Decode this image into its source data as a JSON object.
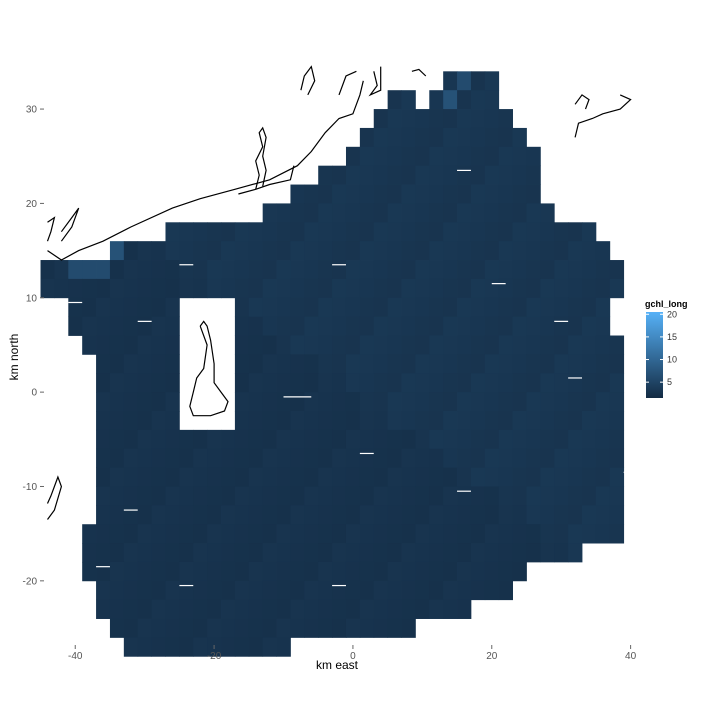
{
  "chart_data": {
    "type": "heatmap",
    "title": "",
    "xlabel": "km east",
    "ylabel": "km north",
    "xlim": [
      -44.5,
      40.2
    ],
    "ylim": [
      -26.8,
      35.2
    ],
    "xticks": [
      -40,
      -20,
      0,
      20,
      40
    ],
    "yticks": [
      -20,
      -10,
      0,
      10,
      20,
      30
    ],
    "xtick_labels": [
      "-40",
      "-20",
      "0",
      "20",
      "40"
    ],
    "ytick_labels": [
      "-20",
      "-10",
      "0",
      "10",
      "20",
      "30"
    ],
    "grid": false,
    "legend": {
      "title": "gchl_long",
      "position": "right",
      "breaks": [
        5,
        10,
        15,
        20
      ],
      "break_labels": [
        "5",
        "10",
        "15",
        "20"
      ],
      "range": [
        1.5,
        20.5
      ],
      "colors": {
        "low": "#132b43",
        "high": "#56b1f7"
      }
    },
    "cells": {
      "cell_width_km": 2,
      "cell_height_km": 2,
      "background_value": 2.8,
      "rows": [
        {
          "y": 33,
          "x_from": 14,
          "x_to": 20
        },
        {
          "y": 31,
          "x_from": 6,
          "x_to": 8
        },
        {
          "y": 31,
          "x_from": 12,
          "x_to": 20
        },
        {
          "y": 29,
          "x_from": 4,
          "x_to": 22
        },
        {
          "y": 27,
          "x_from": 2,
          "x_to": 24
        },
        {
          "y": 25,
          "x_from": 0,
          "x_to": 26
        },
        {
          "y": 23,
          "x_from": -4,
          "x_to": 26
        },
        {
          "y": 21,
          "x_from": -8,
          "x_to": 26
        },
        {
          "y": 19,
          "x_from": -12,
          "x_to": 28
        },
        {
          "y": 17,
          "x_from": -26,
          "x_to": 34
        },
        {
          "y": 15,
          "x_from": -34,
          "x_to": 36
        },
        {
          "y": 13,
          "x_from": -44,
          "x_to": 38
        },
        {
          "y": 11,
          "x_from": -44,
          "x_to": 38
        },
        {
          "y": 9,
          "x_from": -40,
          "x_to": 36
        },
        {
          "y": 7,
          "x_from": -40,
          "x_to": 36
        },
        {
          "y": 5,
          "x_from": -38,
          "x_to": 38
        },
        {
          "y": 3,
          "x_from": -36,
          "x_to": 38
        },
        {
          "y": 1,
          "x_from": -36,
          "x_to": 38
        },
        {
          "y": -1,
          "x_from": -36,
          "x_to": 38
        },
        {
          "y": -3,
          "x_from": -36,
          "x_to": 38
        },
        {
          "y": -5,
          "x_from": -36,
          "x_to": 38
        },
        {
          "y": -7,
          "x_from": -36,
          "x_to": 38
        },
        {
          "y": -9,
          "x_from": -36,
          "x_to": 38
        },
        {
          "y": -11,
          "x_from": -36,
          "x_to": 38
        },
        {
          "y": -13,
          "x_from": -36,
          "x_to": 38
        },
        {
          "y": -15,
          "x_from": -38,
          "x_to": 38
        },
        {
          "y": -17,
          "x_from": -38,
          "x_to": 32
        },
        {
          "y": -19,
          "x_from": -38,
          "x_to": 24
        },
        {
          "y": -21,
          "x_from": -36,
          "x_to": 22
        },
        {
          "y": -23,
          "x_from": -36,
          "x_to": 16
        },
        {
          "y": -25,
          "x_from": -34,
          "x_to": 8
        },
        {
          "y": -27,
          "x_from": -32,
          "x_to": -10
        }
      ],
      "gaps": [
        {
          "x_from": -24,
          "x_to": -18,
          "y_from": -3,
          "y_to": 9
        }
      ],
      "highlights": [
        {
          "x": -44,
          "y": 15,
          "value": 14
        },
        {
          "x": -38,
          "y": 15,
          "value": 8
        },
        {
          "x": -36,
          "y": 15,
          "value": 8
        },
        {
          "x": -34,
          "y": 15,
          "value": 7
        },
        {
          "x": -40,
          "y": 13,
          "value": 6
        },
        {
          "x": -38,
          "y": 13,
          "value": 6
        },
        {
          "x": -36,
          "y": 13,
          "value": 6
        },
        {
          "x": -30,
          "y": 17,
          "value": 6
        },
        {
          "x": -28,
          "y": 17,
          "value": 6
        },
        {
          "x": -26,
          "y": 19,
          "value": 11
        },
        {
          "x": -24,
          "y": 19,
          "value": 11
        },
        {
          "x": -22,
          "y": 19,
          "value": 10
        },
        {
          "x": -20,
          "y": 19,
          "value": 9
        },
        {
          "x": -18,
          "y": 19,
          "value": 8
        },
        {
          "x": -16,
          "y": 19,
          "value": 7
        },
        {
          "x": -14,
          "y": 19,
          "value": 6
        },
        {
          "x": -20,
          "y": 21,
          "value": 14
        },
        {
          "x": -18,
          "y": 21,
          "value": 15
        },
        {
          "x": -16,
          "y": 21,
          "value": 14
        },
        {
          "x": -22,
          "y": 21,
          "value": 12
        },
        {
          "x": -8,
          "y": 23,
          "value": 7
        },
        {
          "x": -6,
          "y": 23,
          "value": 6
        },
        {
          "x": 14,
          "y": 31,
          "value": 7
        },
        {
          "x": 16,
          "y": 33,
          "value": 6
        },
        {
          "x": -22,
          "y": 3,
          "value": 13
        },
        {
          "x": -24,
          "y": 3,
          "value": 9
        },
        {
          "x": -24,
          "y": 1,
          "value": 6
        }
      ]
    },
    "white_segments": [
      {
        "x": [
          -25,
          -23
        ],
        "y": 13.5
      },
      {
        "x": [
          -3,
          -1
        ],
        "y": 13.5
      },
      {
        "x": [
          20,
          22
        ],
        "y": 11.5
      },
      {
        "x": [
          15,
          17
        ],
        "y": 23.5
      },
      {
        "x": [
          -41,
          -39
        ],
        "y": 9.5
      },
      {
        "x": [
          -31,
          -29
        ],
        "y": 7.5
      },
      {
        "x": [
          29,
          31
        ],
        "y": 7.5
      },
      {
        "x": [
          31,
          33
        ],
        "y": 1.5
      },
      {
        "x": [
          -10,
          -6
        ],
        "y": -0.5
      },
      {
        "x": [
          1,
          3
        ],
        "y": -6.5
      },
      {
        "x": [
          15,
          17
        ],
        "y": -10.5
      },
      {
        "x": [
          39,
          41
        ],
        "y": -8.5
      },
      {
        "x": [
          -33,
          -31
        ],
        "y": -12.5
      },
      {
        "x": [
          -37,
          -35
        ],
        "y": -18.5
      },
      {
        "x": [
          -25,
          -23
        ],
        "y": -20.5
      },
      {
        "x": [
          -3,
          -1
        ],
        "y": -20.5
      }
    ],
    "coastlines": [
      [
        [
          -44.0,
          15.0
        ],
        [
          -42.0,
          14.0
        ],
        [
          -39.5,
          15.0
        ],
        [
          -36.0,
          16.0
        ],
        [
          -32.0,
          17.5
        ],
        [
          -26.0,
          19.5
        ],
        [
          -22.0,
          20.5
        ],
        [
          -17.0,
          21.5
        ],
        [
          -12.0,
          22.5
        ],
        [
          -8.0,
          24.0
        ],
        [
          -6.0,
          25.5
        ],
        [
          -4.0,
          27.5
        ],
        [
          -2.0,
          29.0
        ],
        [
          0.0,
          29.5
        ],
        [
          1.0,
          31.5
        ],
        [
          1.5,
          33.0
        ]
      ],
      [
        [
          -42.0,
          16.0
        ],
        [
          -40.5,
          17.5
        ],
        [
          -39.5,
          19.5
        ],
        [
          -40.5,
          18.5
        ],
        [
          -42.0,
          17.0
        ]
      ],
      [
        [
          -44.0,
          18.0
        ],
        [
          -43.0,
          18.5
        ],
        [
          -43.5,
          17.0
        ],
        [
          -44.0,
          16.0
        ]
      ],
      [
        [
          -16.5,
          21.0
        ],
        [
          -14.0,
          21.5
        ],
        [
          -12.0,
          22.0
        ],
        [
          -9.0,
          22.5
        ],
        [
          -8.5,
          24.0
        ]
      ],
      [
        [
          -14.0,
          21.5
        ],
        [
          -13.5,
          23.0
        ],
        [
          -14.0,
          24.5
        ],
        [
          -13.0,
          26.0
        ],
        [
          -13.5,
          27.5
        ],
        [
          -13.0,
          28.0
        ],
        [
          -12.5,
          27.0
        ],
        [
          -13.0,
          25.0
        ],
        [
          -12.5,
          23.5
        ],
        [
          -13.0,
          21.8
        ]
      ],
      [
        [
          -7.5,
          32.0
        ],
        [
          -7.0,
          33.5
        ],
        [
          -6.0,
          34.5
        ],
        [
          -5.5,
          33.0
        ],
        [
          -6.5,
          31.5
        ]
      ],
      [
        [
          -2.0,
          31.5
        ],
        [
          -1.0,
          33.5
        ],
        [
          0.5,
          34.0
        ]
      ],
      [
        [
          3.0,
          34.0
        ],
        [
          3.5,
          32.5
        ],
        [
          2.5,
          31.5
        ],
        [
          4.0,
          32.0
        ],
        [
          4.0,
          34.5
        ]
      ],
      [
        [
          8.5,
          34.0
        ],
        [
          9.5,
          34.2
        ],
        [
          10.5,
          33.5
        ]
      ],
      [
        [
          32.0,
          30.5
        ],
        [
          33.0,
          31.5
        ],
        [
          34.0,
          31.0
        ],
        [
          33.5,
          30.0
        ]
      ],
      [
        [
          32.0,
          27.0
        ],
        [
          32.5,
          28.5
        ],
        [
          34.5,
          29.0
        ],
        [
          36.0,
          29.5
        ],
        [
          38.5,
          30.0
        ],
        [
          40.0,
          31.0
        ],
        [
          38.5,
          31.5
        ]
      ],
      [
        [
          -44.0,
          -11.8
        ],
        [
          -43.5,
          -11.0
        ],
        [
          -43.0,
          -10.0
        ],
        [
          -42.5,
          -9.0
        ],
        [
          -42.0,
          -10.0
        ],
        [
          -43.0,
          -12.5
        ],
        [
          -44.0,
          -13.5
        ]
      ],
      [
        [
          -22.0,
          7.0
        ],
        [
          -21.0,
          5.0
        ],
        [
          -21.5,
          2.5
        ],
        [
          -22.5,
          1.5
        ],
        [
          -23.0,
          0.0
        ],
        [
          -23.5,
          -1.5
        ],
        [
          -23.0,
          -2.5
        ],
        [
          -20.5,
          -2.5
        ],
        [
          -18.5,
          -2.0
        ],
        [
          -18.0,
          -1.0
        ],
        [
          -19.0,
          0.0
        ],
        [
          -20.0,
          1.0
        ],
        [
          -20.0,
          3.0
        ],
        [
          -20.5,
          5.5
        ],
        [
          -21.0,
          7.0
        ],
        [
          -21.5,
          7.5
        ],
        [
          -22.0,
          7.0
        ]
      ]
    ]
  }
}
